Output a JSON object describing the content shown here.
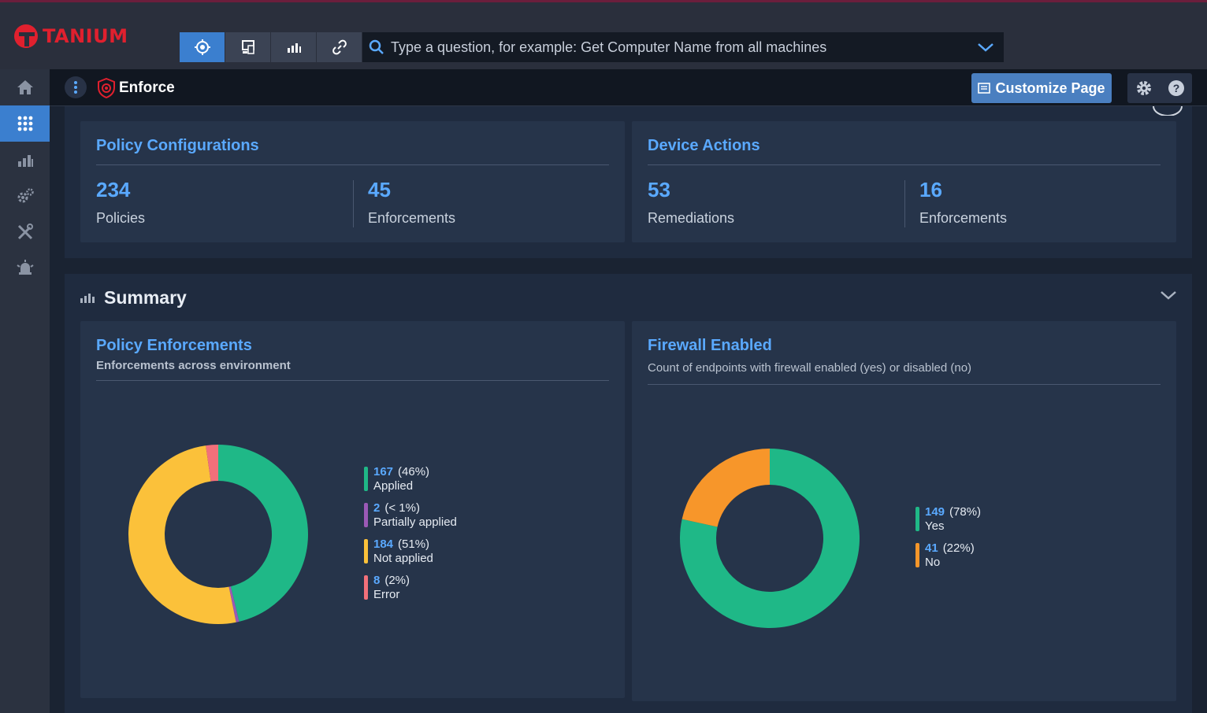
{
  "brand": {
    "name": "TANIUM"
  },
  "question_bar": {
    "placeholder": "Type a question, for example: Get Computer Name from all machines",
    "buttons": [
      "target-icon",
      "endpoint-icon",
      "chart-icon",
      "link-icon"
    ]
  },
  "nav": {
    "items": [
      "home-icon",
      "apps-grid-icon",
      "reports-icon",
      "settings-gears-icon",
      "tools-icon",
      "alerts-icon"
    ]
  },
  "header": {
    "app_title": "Enforce",
    "customize_label": "Customize Page"
  },
  "policy_configurations": {
    "title": "Policy Configurations",
    "stats": [
      {
        "value": "234",
        "label": "Policies"
      },
      {
        "value": "45",
        "label": "Enforcements"
      }
    ]
  },
  "device_actions": {
    "title": "Device Actions",
    "stats": [
      {
        "value": "53",
        "label": "Remediations"
      },
      {
        "value": "16",
        "label": "Enforcements"
      }
    ]
  },
  "summary": {
    "title": "Summary"
  },
  "policy_enforcements": {
    "title": "Policy Enforcements",
    "subtitle": "Enforcements across environment"
  },
  "firewall_enabled": {
    "title": "Firewall Enabled",
    "subtitle": "Count of endpoints with firewall enabled (yes) or disabled (no)"
  },
  "chart_data": [
    {
      "type": "pie",
      "title": "Policy Enforcements",
      "categories": [
        "Applied",
        "Partially applied",
        "Not applied",
        "Error"
      ],
      "values": [
        167,
        2,
        184,
        8
      ],
      "percent_labels": [
        "(46%)",
        "(< 1%)",
        "(51%)",
        "(2%)"
      ],
      "colors": [
        "#1fb887",
        "#9b59b6",
        "#fbc13a",
        "#f2707a"
      ],
      "donut": true
    },
    {
      "type": "pie",
      "title": "Firewall Enabled",
      "categories": [
        "Yes",
        "No"
      ],
      "values": [
        149,
        41
      ],
      "percent_labels": [
        "(78%)",
        "(22%)"
      ],
      "colors": [
        "#1fb887",
        "#f7962a"
      ],
      "donut": true
    }
  ]
}
